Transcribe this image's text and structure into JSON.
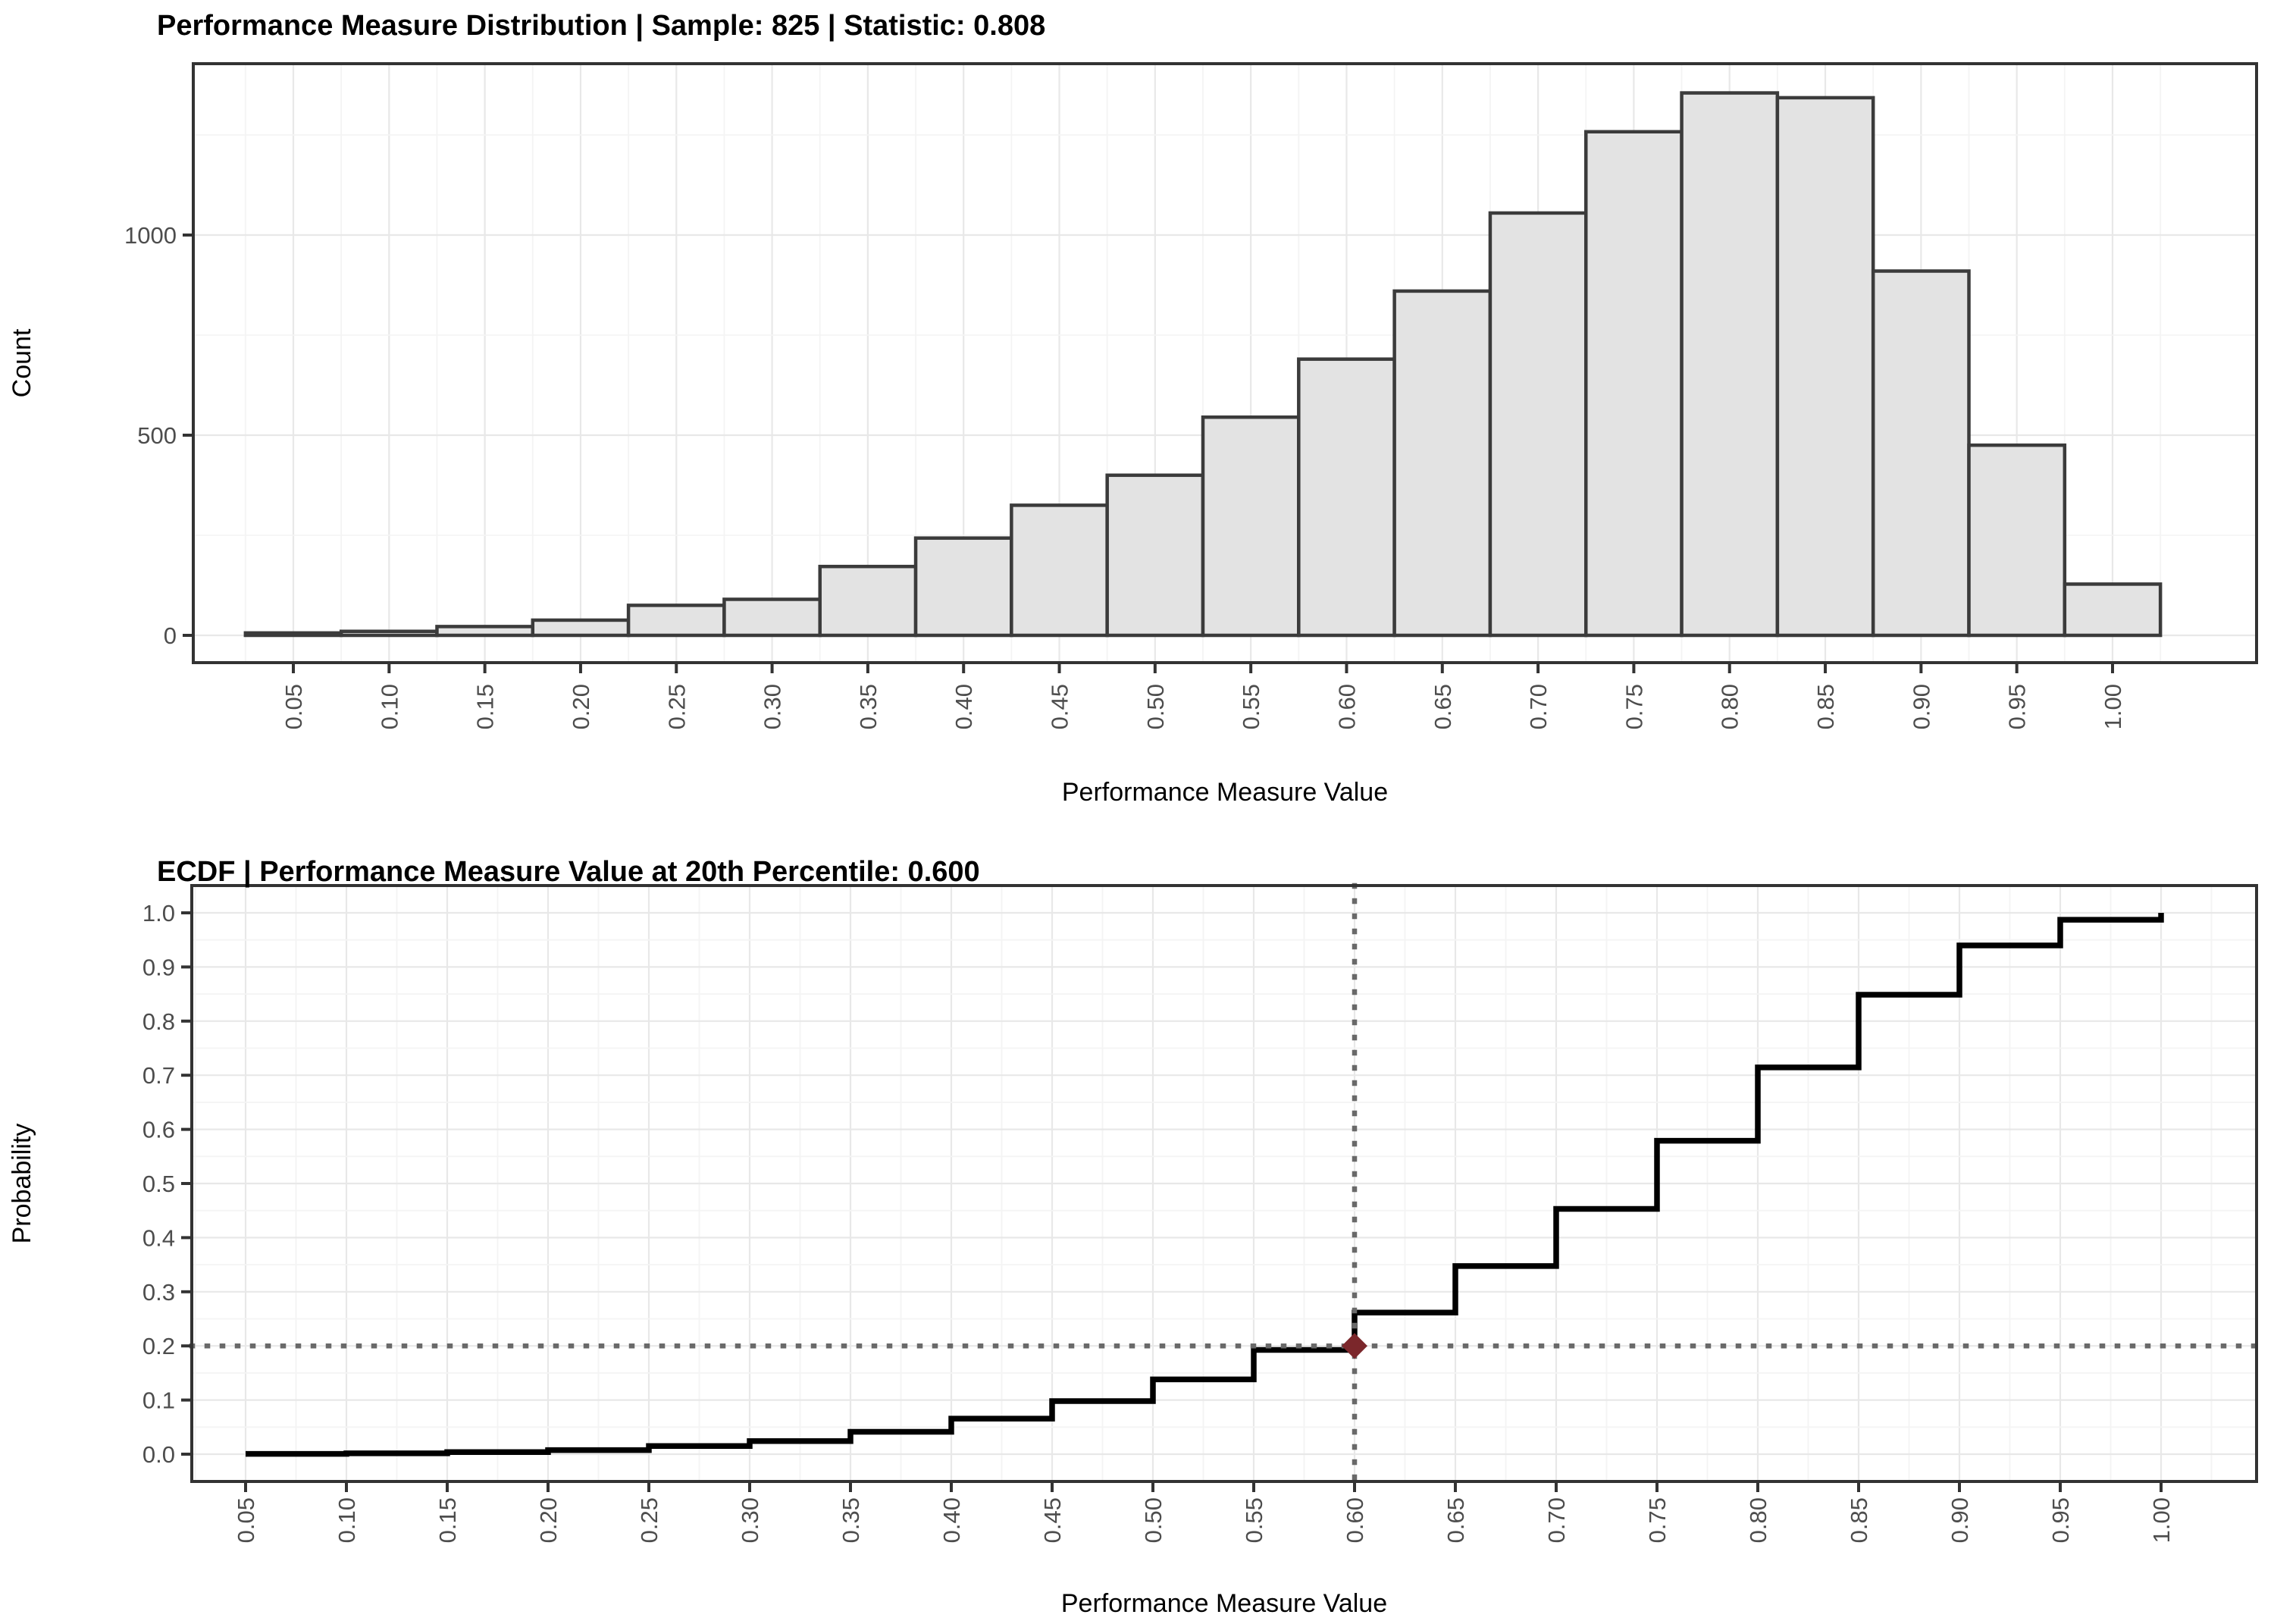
{
  "figure": {
    "background": "#ffffff",
    "panel_background": "#ffffff",
    "panel_border_color": "#333333",
    "grid_major_color": "#e8e8e8",
    "grid_minor_color": "#f4f4f4",
    "tick_mark_color": "#333333",
    "tick_label_color": "#4d4d4d"
  },
  "chart_data": [
    {
      "type": "bar",
      "subtype": "histogram",
      "title": "Performance Measure Distribution | Sample: 825 | Statistic: 0.808",
      "xlabel": "Performance Measure Value",
      "ylabel": "Count",
      "annotations": {
        "sample": "825",
        "statistic": "0.808"
      },
      "bin_width": 0.05,
      "categories": [
        0.05,
        0.1,
        0.15,
        0.2,
        0.25,
        0.3,
        0.35,
        0.4,
        0.45,
        0.5,
        0.55,
        0.6,
        0.65,
        0.7,
        0.75,
        0.8,
        0.85,
        0.9,
        0.95,
        1.0
      ],
      "xtick_labels": [
        "0.05",
        "0.10",
        "0.15",
        "0.20",
        "0.25",
        "0.30",
        "0.35",
        "0.40",
        "0.45",
        "0.50",
        "0.55",
        "0.60",
        "0.65",
        "0.70",
        "0.75",
        "0.80",
        "0.85",
        "0.90",
        "0.95",
        "1.00"
      ],
      "values": [
        6,
        10,
        22,
        38,
        75,
        90,
        172,
        243,
        325,
        400,
        545,
        690,
        860,
        1055,
        1258,
        1355,
        1343,
        910,
        475,
        128
      ],
      "ylim": [
        0,
        1430
      ],
      "yticks": [
        0,
        500,
        1000
      ],
      "ytick_labels": [
        "0",
        "500",
        "1000"
      ],
      "yticks_minor": [
        250,
        750,
        1250
      ],
      "grid": true,
      "legend": "none",
      "bar_fill": "#e3e3e3",
      "bar_stroke": "#3b3b3b"
    },
    {
      "type": "line",
      "subtype": "ecdf-step",
      "title": "ECDF | Performance Measure Value at 20th Percentile: 0.600",
      "xlabel": "Performance Measure Value",
      "ylabel": "Probability",
      "annotations": {
        "percentile": "20th",
        "percentile_value": "0.600",
        "percentile_probability": 0.2
      },
      "x": [
        0.05,
        0.1,
        0.15,
        0.2,
        0.25,
        0.3,
        0.35,
        0.4,
        0.45,
        0.5,
        0.55,
        0.6,
        0.65,
        0.7,
        0.75,
        0.8,
        0.85,
        0.9,
        0.95,
        1.0
      ],
      "y": [
        0.0006,
        0.0016,
        0.0038,
        0.0076,
        0.0151,
        0.0241,
        0.0413,
        0.0656,
        0.0981,
        0.1381,
        0.1926,
        0.2616,
        0.3476,
        0.4531,
        0.5789,
        0.7144,
        0.8487,
        0.9397,
        0.9872,
        1.0
      ],
      "xtick_labels": [
        "0.05",
        "0.10",
        "0.15",
        "0.20",
        "0.25",
        "0.30",
        "0.35",
        "0.40",
        "0.45",
        "0.50",
        "0.55",
        "0.60",
        "0.65",
        "0.70",
        "0.75",
        "0.80",
        "0.85",
        "0.90",
        "0.95",
        "1.00"
      ],
      "ylim": [
        0,
        1
      ],
      "yticks": [
        0,
        0.1,
        0.2,
        0.3,
        0.4,
        0.5,
        0.6,
        0.7,
        0.8,
        0.9,
        1.0
      ],
      "ytick_labels": [
        "0.0",
        "0.1",
        "0.2",
        "0.3",
        "0.4",
        "0.5",
        "0.6",
        "0.7",
        "0.8",
        "0.9",
        "1.0"
      ],
      "grid": true,
      "legend": "none",
      "line_color": "#000000",
      "reference_lines": {
        "horizontal_probability": 0.2,
        "vertical_value": 0.6,
        "color": "#696969",
        "style": "dotted"
      },
      "marker": {
        "x": 0.6,
        "y": 0.2,
        "shape": "diamond",
        "color": "#7b272b"
      }
    }
  ]
}
